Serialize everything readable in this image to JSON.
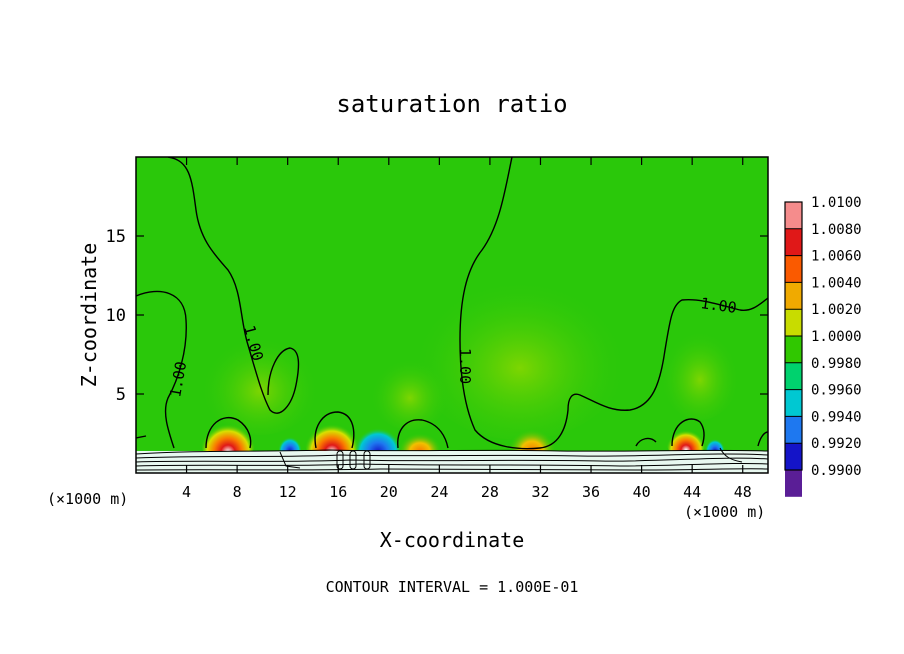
{
  "chart_data": {
    "type": "heatmap",
    "title": "saturation ratio",
    "xlabel": "X-coordinate",
    "ylabel": "Z-coordinate",
    "x_unit_label": "(×1000 m)",
    "z_unit_label": "(×1000 m)",
    "xlim": [
      0,
      50
    ],
    "ylim": [
      0,
      20
    ],
    "x_ticks": [
      4,
      8,
      12,
      16,
      20,
      24,
      28,
      32,
      36,
      40,
      44,
      48
    ],
    "y_ticks": [
      5,
      10,
      15
    ],
    "contour_interval_text": "CONTOUR INTERVAL = 1.000E-01",
    "contour_labels": [
      "1.00",
      "1.00",
      "1.00",
      "1.00"
    ],
    "colorbar": {
      "levels": [
        "1.0100",
        "1.0080",
        "1.0060",
        "1.0040",
        "1.0020",
        "1.0000",
        "0.9980",
        "0.9960",
        "0.9940",
        "0.9920",
        "0.9900"
      ],
      "colors": [
        "#f58c8c",
        "#e01818",
        "#fa5a00",
        "#f0aa00",
        "#c8dc00",
        "#30c800",
        "#00d26e",
        "#00c8d2",
        "#1e78f0",
        "#1414c8",
        "#5a1e96"
      ],
      "min": 0.99,
      "max": 1.01
    },
    "background_value": 1.0,
    "background_color": "#2ac80a",
    "features": [
      {
        "x": 7.5,
        "z": 2.0,
        "value": 1.008,
        "kind": "max"
      },
      {
        "x": 15.5,
        "z": 2.0,
        "value": 1.008,
        "kind": "max"
      },
      {
        "x": 18.8,
        "z": 2.0,
        "value": 0.992,
        "kind": "min"
      },
      {
        "x": 13.0,
        "z": 1.8,
        "value": 0.993,
        "kind": "min"
      },
      {
        "x": 22.0,
        "z": 1.9,
        "value": 1.004,
        "kind": "max"
      },
      {
        "x": 31.0,
        "z": 2.0,
        "value": 1.004,
        "kind": "max"
      },
      {
        "x": 43.5,
        "z": 2.0,
        "value": 1.006,
        "kind": "max"
      },
      {
        "x": 45.5,
        "z": 1.8,
        "value": 0.993,
        "kind": "min"
      }
    ]
  }
}
